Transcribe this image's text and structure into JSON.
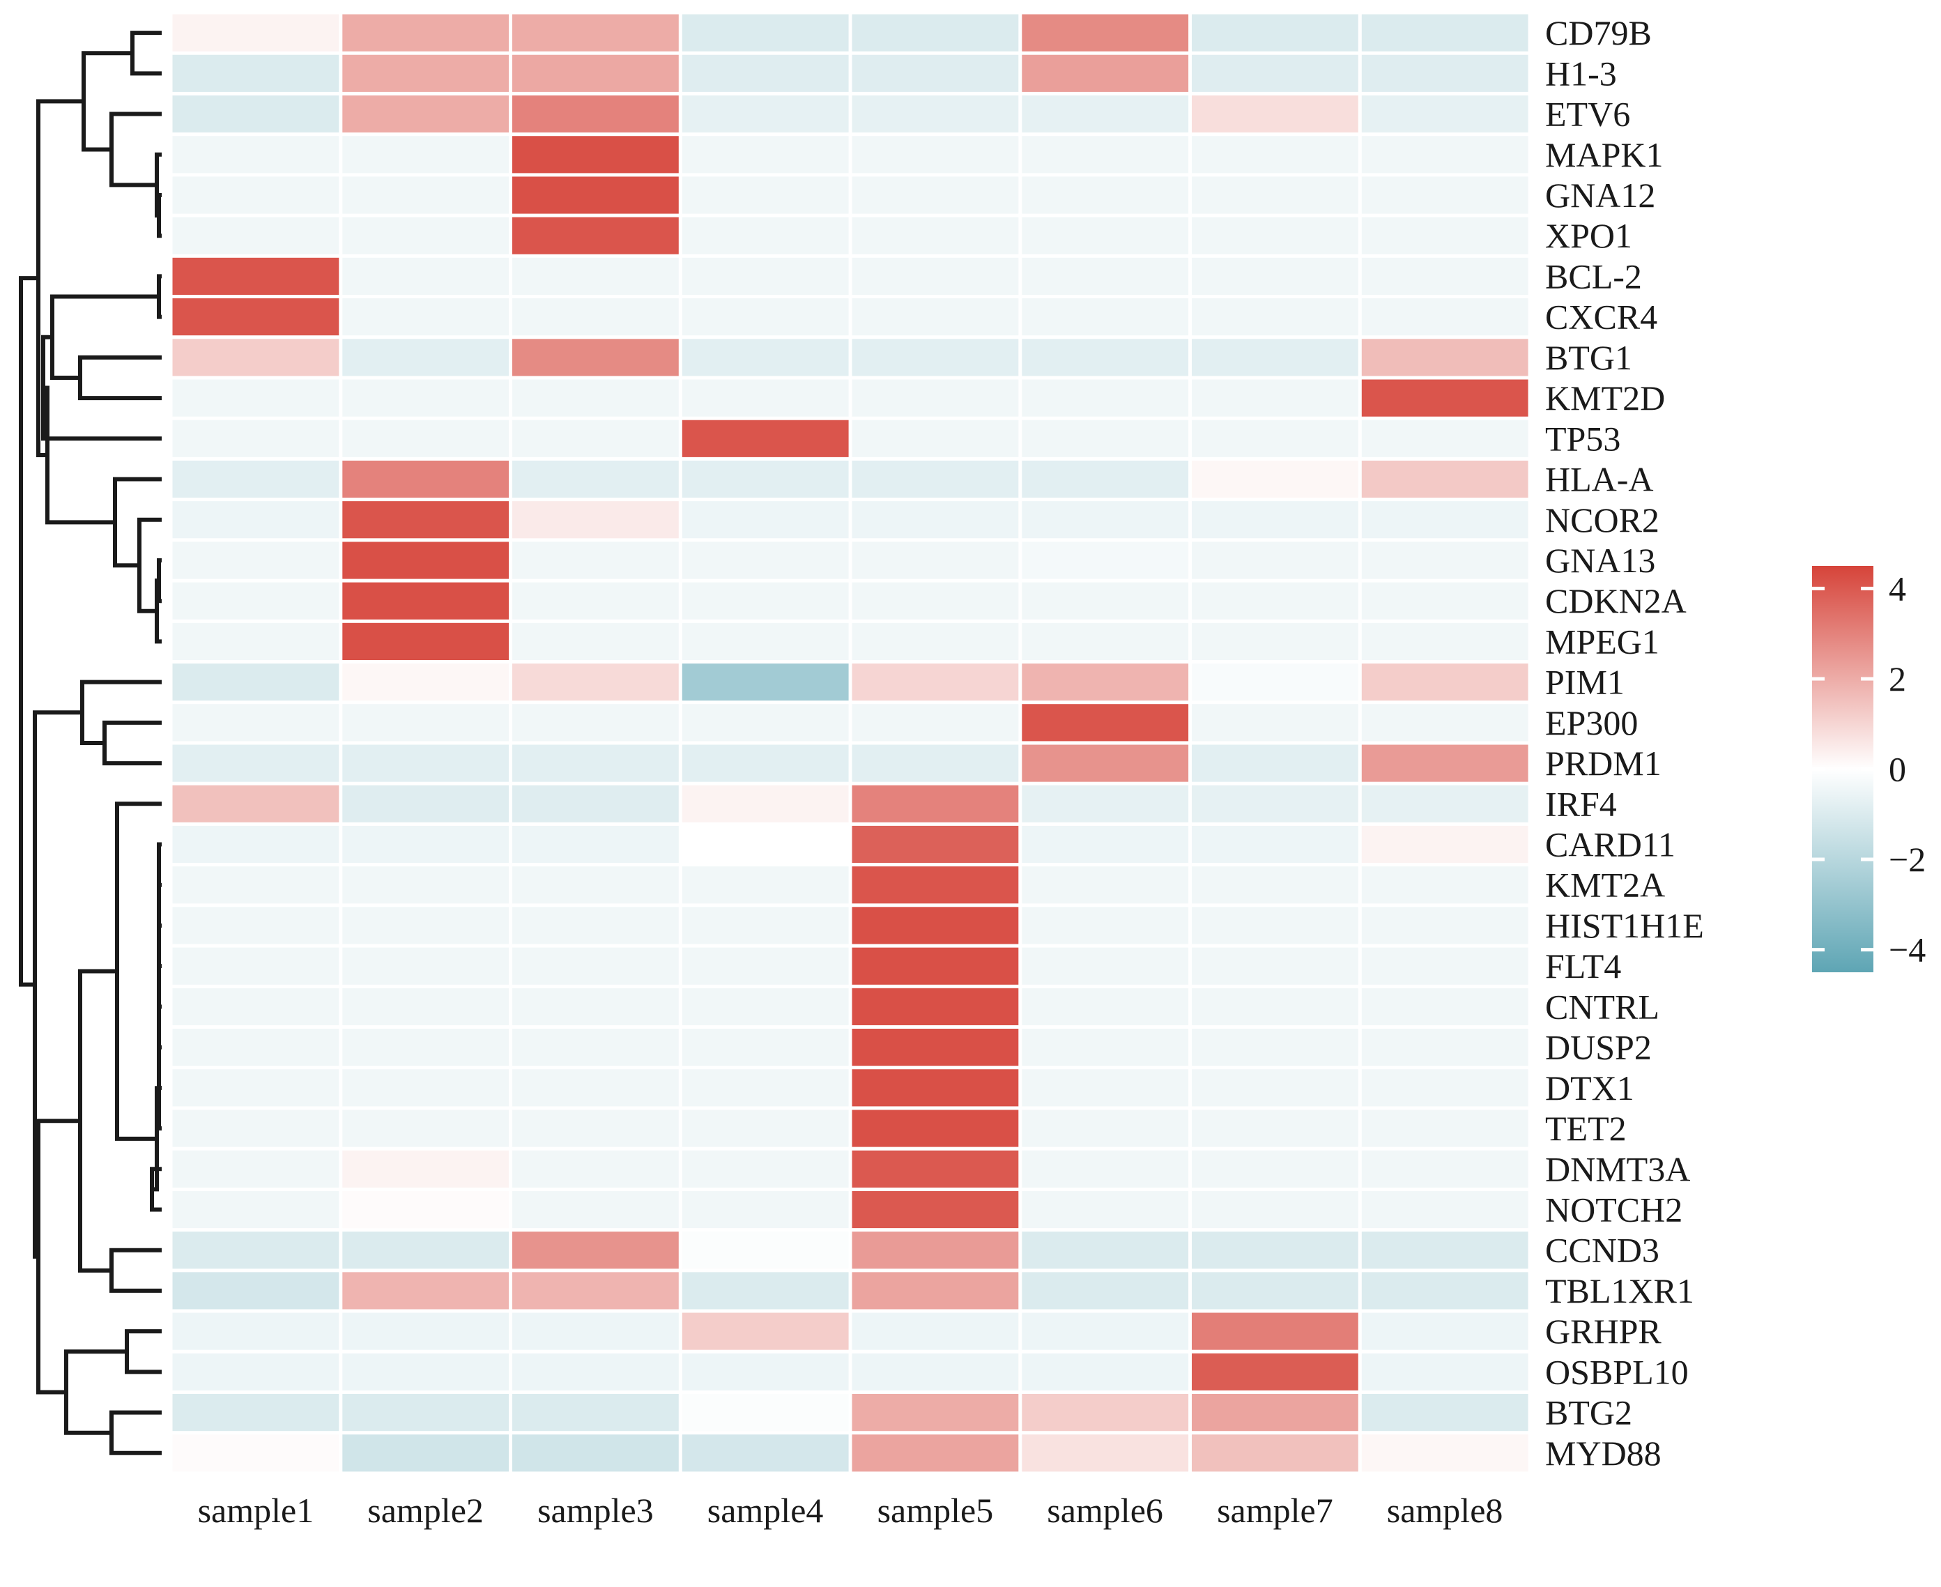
{
  "chart_data": {
    "type": "heatmap",
    "title": "",
    "xlabel": "",
    "ylabel": "",
    "columns": [
      "sample1",
      "sample2",
      "sample3",
      "sample4",
      "sample5",
      "sample6",
      "sample7",
      "sample8"
    ],
    "rows": [
      "CD79B",
      "H1-3",
      "ETV6",
      "MAPK1",
      "GNA12",
      "XPO1",
      "BCL-2",
      "CXCR4",
      "BTG1",
      "KMT2D",
      "TP53",
      "HLA-A",
      "NCOR2",
      "GNA13",
      "CDKN2A",
      "MPEG1",
      "PIM1",
      "EP300",
      "PRDM1",
      "IRF4",
      "CARD11",
      "KMT2A",
      "HIST1H1E",
      "FLT4",
      "CNTRL",
      "DUSP2",
      "DTX1",
      "TET2",
      "DNMT3A",
      "NOTCH2",
      "CCND3",
      "TBL1XR1",
      "GRHPR",
      "OSBPL10",
      "BTG2",
      "MYD88"
    ],
    "values": [
      [
        0.3,
        2.0,
        2.0,
        -1.0,
        -1.0,
        2.8,
        -1.0,
        -1.0
      ],
      [
        -1.0,
        2.0,
        2.1,
        -0.9,
        -0.9,
        2.3,
        -0.9,
        -0.9
      ],
      [
        -1.0,
        2.0,
        3.0,
        -0.7,
        -0.7,
        -0.7,
        0.8,
        -0.7
      ],
      [
        -0.4,
        -0.4,
        4.2,
        -0.4,
        -0.4,
        -0.4,
        -0.4,
        -0.4
      ],
      [
        -0.4,
        -0.4,
        4.2,
        -0.4,
        -0.4,
        -0.4,
        -0.4,
        -0.4
      ],
      [
        -0.4,
        -0.4,
        4.1,
        -0.4,
        -0.4,
        -0.4,
        -0.4,
        -0.4
      ],
      [
        4.1,
        -0.4,
        -0.4,
        -0.4,
        -0.4,
        -0.4,
        -0.4,
        -0.4
      ],
      [
        4.1,
        -0.4,
        -0.4,
        -0.4,
        -0.4,
        -0.4,
        -0.4,
        -0.4
      ],
      [
        1.2,
        -0.8,
        2.8,
        -0.8,
        -0.8,
        -0.8,
        -0.8,
        1.6
      ],
      [
        -0.4,
        -0.4,
        -0.4,
        -0.4,
        -0.4,
        -0.4,
        -0.4,
        4.1
      ],
      [
        -0.4,
        -0.4,
        -0.4,
        4.1,
        -0.4,
        -0.4,
        -0.4,
        -0.4
      ],
      [
        -0.8,
        3.0,
        -0.8,
        -0.8,
        -0.8,
        -0.8,
        0.2,
        1.3
      ],
      [
        -0.5,
        4.1,
        0.5,
        -0.5,
        -0.5,
        -0.5,
        -0.5,
        -0.5
      ],
      [
        -0.4,
        4.2,
        -0.4,
        -0.4,
        -0.4,
        -0.3,
        -0.4,
        -0.4
      ],
      [
        -0.4,
        4.2,
        -0.4,
        -0.4,
        -0.4,
        -0.4,
        -0.4,
        -0.4
      ],
      [
        -0.4,
        4.2,
        -0.4,
        -0.4,
        -0.4,
        -0.4,
        -0.4,
        -0.4
      ],
      [
        -1.0,
        0.2,
        0.9,
        -2.6,
        1.0,
        1.8,
        -0.2,
        1.2
      ],
      [
        -0.4,
        -0.4,
        -0.4,
        -0.4,
        -0.4,
        4.1,
        -0.4,
        -0.4
      ],
      [
        -0.8,
        -0.8,
        -0.8,
        -0.8,
        -0.8,
        2.6,
        -0.8,
        2.4
      ],
      [
        1.5,
        -0.9,
        -0.9,
        0.3,
        3.0,
        -0.7,
        -0.7,
        -0.7
      ],
      [
        -0.5,
        -0.5,
        -0.5,
        0.0,
        3.8,
        -0.5,
        -0.5,
        0.3
      ],
      [
        -0.4,
        -0.4,
        -0.4,
        -0.4,
        4.1,
        -0.4,
        -0.4,
        -0.4
      ],
      [
        -0.4,
        -0.4,
        -0.4,
        -0.4,
        4.2,
        -0.4,
        -0.4,
        -0.4
      ],
      [
        -0.4,
        -0.4,
        -0.4,
        -0.4,
        4.2,
        -0.4,
        -0.4,
        -0.4
      ],
      [
        -0.4,
        -0.4,
        -0.4,
        -0.4,
        4.2,
        -0.4,
        -0.4,
        -0.4
      ],
      [
        -0.4,
        -0.4,
        -0.4,
        -0.4,
        4.2,
        -0.4,
        -0.4,
        -0.4
      ],
      [
        -0.4,
        -0.4,
        -0.4,
        -0.4,
        4.2,
        -0.4,
        -0.4,
        -0.4
      ],
      [
        -0.4,
        -0.4,
        -0.4,
        -0.4,
        4.2,
        -0.4,
        -0.4,
        -0.4
      ],
      [
        -0.4,
        0.3,
        -0.4,
        -0.4,
        4.0,
        -0.4,
        -0.4,
        -0.4
      ],
      [
        -0.4,
        0.1,
        -0.4,
        -0.4,
        4.0,
        -0.4,
        -0.4,
        -0.4
      ],
      [
        -1.0,
        -1.0,
        2.6,
        -0.1,
        2.4,
        -1.0,
        -1.0,
        -1.0
      ],
      [
        -1.2,
        1.8,
        1.8,
        -1.0,
        2.2,
        -1.0,
        -1.0,
        -1.0
      ],
      [
        -0.5,
        -0.5,
        -0.5,
        1.2,
        -0.5,
        -0.5,
        3.1,
        -0.5
      ],
      [
        -0.5,
        -0.5,
        -0.5,
        -0.5,
        -0.5,
        -0.5,
        3.9,
        -0.5
      ],
      [
        -1.0,
        -1.0,
        -1.0,
        -0.1,
        2.0,
        1.2,
        2.2,
        -1.0
      ],
      [
        0.1,
        -1.3,
        -1.3,
        -1.2,
        2.2,
        0.7,
        1.5,
        0.2
      ]
    ],
    "color_scale": {
      "min": -4.5,
      "max": 4.5,
      "low_color": "#5ea5b4",
      "mid_color": "#ffffff",
      "high_color": "#d6443a",
      "ticks": [
        4,
        2,
        0,
        -2,
        -4
      ],
      "tick_labels": [
        "4",
        "2",
        "0",
        "−2",
        "−4"
      ]
    },
    "row_dendrogram": true,
    "legend_position": "right"
  }
}
